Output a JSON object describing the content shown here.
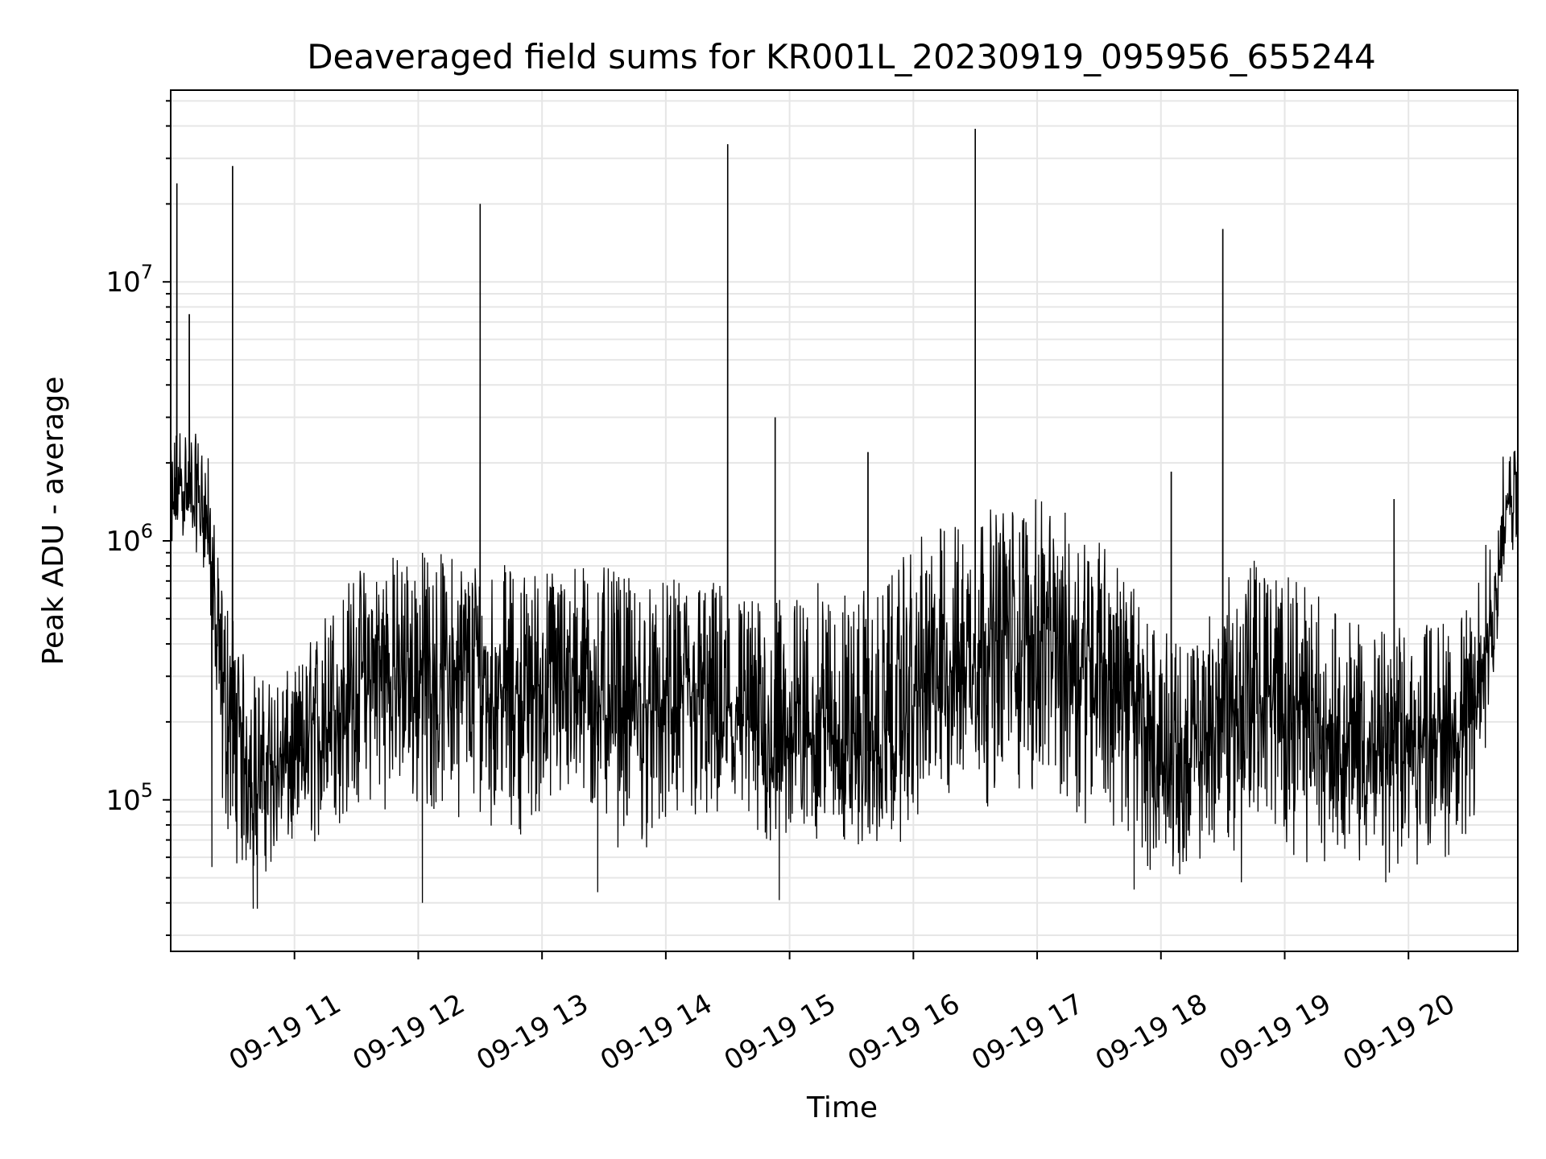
{
  "chart_data": {
    "type": "line",
    "title": "Deaveraged field sums for KR001L_20230919_095956_655244",
    "xlabel": "Time",
    "ylabel": "Peak ADU - average",
    "x_range": [
      "2023-09-19T10:00:00",
      "2023-09-19T20:53:00"
    ],
    "yscale": "log",
    "ylim": [
      26000,
      55000000
    ],
    "grid": true,
    "line_color": "#000000",
    "grid_color": "#e6e6e6",
    "x_ticks": [
      {
        "value": "2023-09-19T11:00:00",
        "label": "09-19 11"
      },
      {
        "value": "2023-09-19T12:00:00",
        "label": "09-19 12"
      },
      {
        "value": "2023-09-19T13:00:00",
        "label": "09-19 13"
      },
      {
        "value": "2023-09-19T14:00:00",
        "label": "09-19 14"
      },
      {
        "value": "2023-09-19T15:00:00",
        "label": "09-19 15"
      },
      {
        "value": "2023-09-19T16:00:00",
        "label": "09-19 16"
      },
      {
        "value": "2023-09-19T17:00:00",
        "label": "09-19 17"
      },
      {
        "value": "2023-09-19T18:00:00",
        "label": "09-19 18"
      },
      {
        "value": "2023-09-19T19:00:00",
        "label": "09-19 19"
      },
      {
        "value": "2023-09-19T20:00:00",
        "label": "09-19 20"
      }
    ],
    "y_ticks": [
      {
        "value": 100000,
        "base": "10",
        "exp": "5"
      },
      {
        "value": 1000000,
        "base": "10",
        "exp": "6"
      },
      {
        "value": 10000000,
        "base": "10",
        "exp": "7"
      }
    ],
    "series": [
      {
        "x": [
          "2023-09-19T10:00:00",
          "2023-09-19T10:02:00",
          "2023-09-19T10:05:00",
          "2023-09-19T10:08:00",
          "2023-09-19T10:12:00",
          "2023-09-19T10:15:00",
          "2023-09-19T10:18:00",
          "2023-09-19T10:24:00",
          "2023-09-19T10:30:00",
          "2023-09-19T10:36:00",
          "2023-09-19T10:45:00",
          "2023-09-19T11:00:00",
          "2023-09-19T11:15:00",
          "2023-09-19T11:30:00",
          "2023-09-19T11:45:00",
          "2023-09-19T12:00:00",
          "2023-09-19T12:15:00",
          "2023-09-19T12:30:00",
          "2023-09-19T12:45:00",
          "2023-09-19T13:00:00",
          "2023-09-19T13:15:00",
          "2023-09-19T13:30:00",
          "2023-09-19T13:45:00",
          "2023-09-19T14:00:00",
          "2023-09-19T14:15:00",
          "2023-09-19T14:30:00",
          "2023-09-19T14:45:00",
          "2023-09-19T15:00:00",
          "2023-09-19T15:15:00",
          "2023-09-19T15:30:00",
          "2023-09-19T15:45:00",
          "2023-09-19T16:00:00",
          "2023-09-19T16:15:00",
          "2023-09-19T16:30:00",
          "2023-09-19T16:45:00",
          "2023-09-19T17:00:00",
          "2023-09-19T17:15:00",
          "2023-09-19T17:30:00",
          "2023-09-19T17:45:00",
          "2023-09-19T18:00:00",
          "2023-09-19T18:15:00",
          "2023-09-19T18:30:00",
          "2023-09-19T18:45:00",
          "2023-09-19T19:00:00",
          "2023-09-19T19:15:00",
          "2023-09-19T19:30:00",
          "2023-09-19T19:45:00",
          "2023-09-19T20:00:00",
          "2023-09-19T20:15:00",
          "2023-09-19T20:30:00",
          "2023-09-19T20:36:00",
          "2023-09-19T20:42:00",
          "2023-09-19T20:48:00",
          "2023-09-19T20:53:00"
        ],
        "y_median": [
          900000,
          1500000,
          1600000,
          1500000,
          1400000,
          1300000,
          1200000,
          300000,
          200000,
          140000,
          130000,
          140000,
          200000,
          280000,
          320000,
          300000,
          320000,
          300000,
          260000,
          280000,
          300000,
          260000,
          220000,
          230000,
          240000,
          220000,
          180000,
          170000,
          200000,
          160000,
          150000,
          250000,
          320000,
          380000,
          420000,
          430000,
          400000,
          380000,
          250000,
          140000,
          130000,
          230000,
          250000,
          230000,
          210000,
          170000,
          160000,
          170000,
          180000,
          190000,
          300000,
          600000,
          1400000,
          1300000
        ],
        "y_low": [
          380000,
          900000,
          1000000,
          1000000,
          900000,
          800000,
          700000,
          70000,
          60000,
          45000,
          50000,
          55000,
          65000,
          80000,
          90000,
          80000,
          85000,
          80000,
          70000,
          75000,
          80000,
          65000,
          60000,
          60000,
          65000,
          60000,
          55000,
          60000,
          65000,
          60000,
          60000,
          70000,
          80000,
          90000,
          90000,
          90000,
          80000,
          75000,
          55000,
          50000,
          50000,
          60000,
          60000,
          60000,
          55000,
          55000,
          50000,
          50000,
          55000,
          60000,
          120000,
          300000,
          900000,
          800000
        ],
        "y_high": [
          2200000,
          2800000,
          3000000,
          2800000,
          2600000,
          2500000,
          2200000,
          700000,
          550000,
          350000,
          300000,
          320000,
          550000,
          800000,
          900000,
          950000,
          900000,
          900000,
          800000,
          800000,
          850000,
          800000,
          700000,
          700000,
          750000,
          700000,
          600000,
          600000,
          700000,
          650000,
          650000,
          1000000,
          1200000,
          1300000,
          1400000,
          1450000,
          1300000,
          1100000,
          700000,
          450000,
          400000,
          700000,
          850000,
          750000,
          650000,
          500000,
          450000,
          480000,
          500000,
          550000,
          900000,
          1600000,
          2500000,
          2200000
        ],
        "spikes": [
          {
            "x": "2023-09-19T10:03:00",
            "y": 24000000
          },
          {
            "x": "2023-09-19T10:09:00",
            "y": 7500000
          },
          {
            "x": "2023-09-19T10:30:00",
            "y": 28000000
          },
          {
            "x": "2023-09-19T12:30:00",
            "y": 20000000
          },
          {
            "x": "2023-09-19T14:30:00",
            "y": 34000000
          },
          {
            "x": "2023-09-19T14:53:00",
            "y": 3000000
          },
          {
            "x": "2023-09-19T15:38:00",
            "y": 2200000
          },
          {
            "x": "2023-09-19T16:30:00",
            "y": 39000000
          },
          {
            "x": "2023-09-19T18:05:00",
            "y": 1850000
          },
          {
            "x": "2023-09-19T18:30:00",
            "y": 16000000
          },
          {
            "x": "2023-09-19T19:53:00",
            "y": 1450000
          }
        ],
        "dips": [
          {
            "x": "2023-09-19T10:20:00",
            "y": 55000
          },
          {
            "x": "2023-09-19T10:40:00",
            "y": 38000
          },
          {
            "x": "2023-09-19T10:42:00",
            "y": 38000
          },
          {
            "x": "2023-09-19T12:02:00",
            "y": 40000
          },
          {
            "x": "2023-09-19T13:27:00",
            "y": 44000
          },
          {
            "x": "2023-09-19T14:55:00",
            "y": 41000
          },
          {
            "x": "2023-09-19T17:47:00",
            "y": 45000
          },
          {
            "x": "2023-09-19T18:39:00",
            "y": 48000
          },
          {
            "x": "2023-09-19T19:49:00",
            "y": 48000
          }
        ]
      }
    ]
  }
}
